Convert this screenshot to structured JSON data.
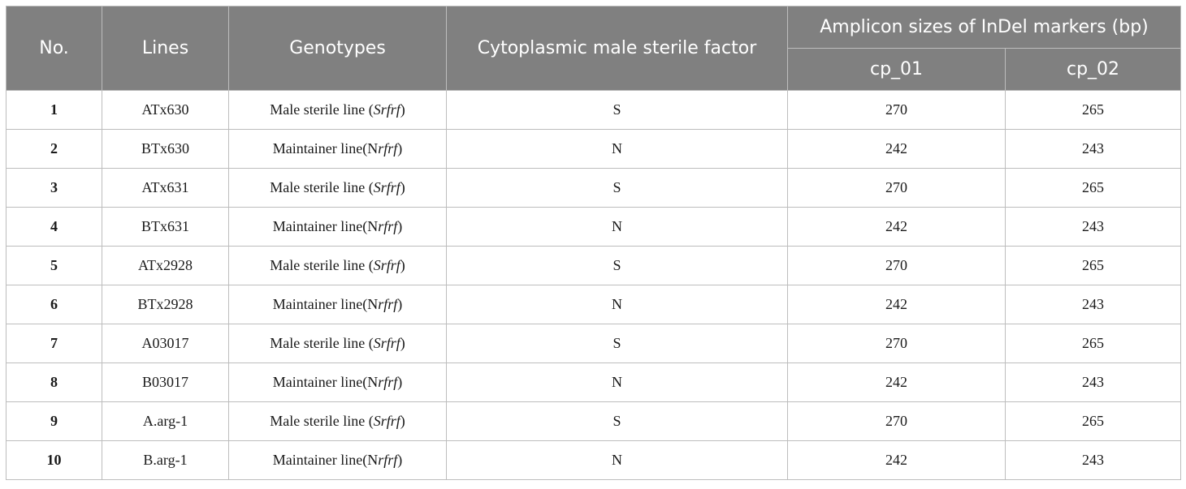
{
  "header": {
    "no": "No.",
    "lines": "Lines",
    "genotypes": "Genotypes",
    "cms_factor": "Cytoplasmic male sterile factor",
    "amplicon": "Amplicon sizes of InDel markers (bp)",
    "cp01": "cp_01",
    "cp02": "cp_02"
  },
  "rows": [
    {
      "no": "1",
      "line": "ATx630",
      "geno_pre": "Male sterile line (",
      "geno_cyto": "S",
      "geno_it": "rfrf",
      "geno_post": ")",
      "factor": "S",
      "cp01": "270",
      "cp02": "265"
    },
    {
      "no": "2",
      "line": "BTx630",
      "geno_pre": "Maintainer line(",
      "geno_cyto": "N",
      "geno_it": "rfrf",
      "geno_post": ")",
      "factor": "N",
      "cp01": "242",
      "cp02": "243"
    },
    {
      "no": "3",
      "line": "ATx631",
      "geno_pre": "Male sterile line (",
      "geno_cyto": "S",
      "geno_it": "rfrf",
      "geno_post": ")",
      "factor": "S",
      "cp01": "270",
      "cp02": "265"
    },
    {
      "no": "4",
      "line": "BTx631",
      "geno_pre": "Maintainer line(",
      "geno_cyto": "N",
      "geno_it": "rfrf",
      "geno_post": ")",
      "factor": "N",
      "cp01": "242",
      "cp02": "243"
    },
    {
      "no": "5",
      "line": "ATx2928",
      "geno_pre": "Male sterile line (",
      "geno_cyto": "S",
      "geno_it": "rfrf",
      "geno_post": ")",
      "factor": "S",
      "cp01": "270",
      "cp02": "265"
    },
    {
      "no": "6",
      "line": "BTx2928",
      "geno_pre": "Maintainer line(",
      "geno_cyto": "N",
      "geno_it": "rfrf",
      "geno_post": ")",
      "factor": "N",
      "cp01": "242",
      "cp02": "243"
    },
    {
      "no": "7",
      "line": "A03017",
      "geno_pre": "Male sterile line (",
      "geno_cyto": "S",
      "geno_it": "rfrf",
      "geno_post": ")",
      "factor": "S",
      "cp01": "270",
      "cp02": "265"
    },
    {
      "no": "8",
      "line": "B03017",
      "geno_pre": "Maintainer line(",
      "geno_cyto": "N",
      "geno_it": "rfrf",
      "geno_post": ")",
      "factor": "N",
      "cp01": "242",
      "cp02": "243"
    },
    {
      "no": "9",
      "line": "A.arg-1",
      "geno_pre": "Male sterile line (",
      "geno_cyto": "S",
      "geno_it": "rfrf",
      "geno_post": ")",
      "factor": "S",
      "cp01": "270",
      "cp02": "265"
    },
    {
      "no": "10",
      "line": "B.arg-1",
      "geno_pre": "Maintainer line(",
      "geno_cyto": "N",
      "geno_it": "rfrf",
      "geno_post": ")",
      "factor": "N",
      "cp01": "242",
      "cp02": "243"
    }
  ],
  "colors": {
    "header_bg": "#808080",
    "header_text": "#ffffff",
    "border": "#bdbdbd",
    "cell_text": "#1a1a1a"
  }
}
